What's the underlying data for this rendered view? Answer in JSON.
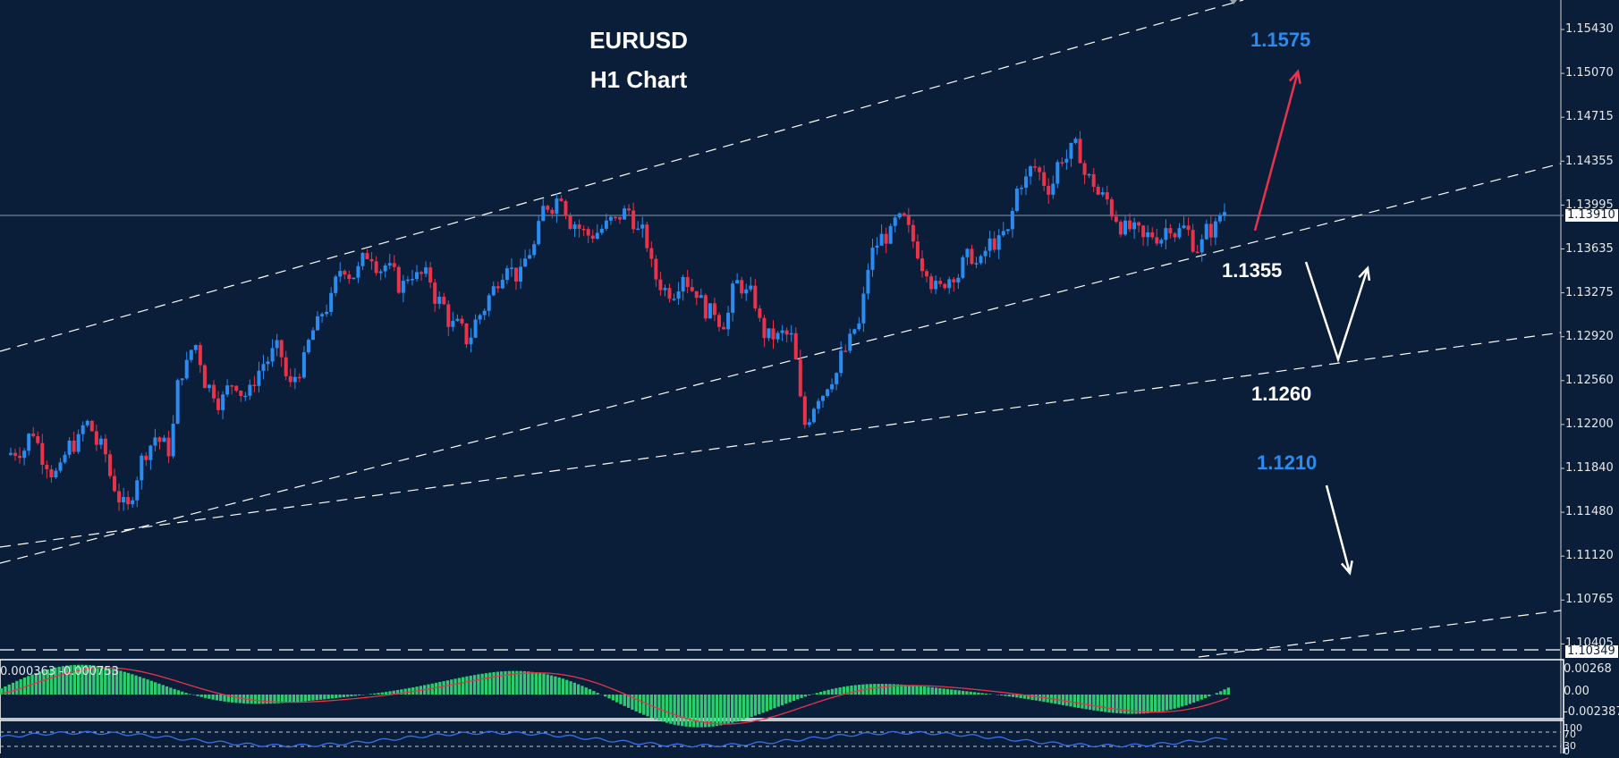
{
  "chart_data": {
    "type": "candlestick",
    "title": "EURUSD",
    "subtitle": "H1 Chart",
    "symbol": "EURUSD",
    "timeframe": "H1",
    "ylim": [
      1.103,
      1.157
    ],
    "y_ticks": [
      "1.15430",
      "1.15070",
      "1.14715",
      "1.14355",
      "1.13995",
      "1.13635",
      "1.13275",
      "1.12920",
      "1.12560",
      "1.12200",
      "1.11840",
      "1.11480",
      "1.11120",
      "1.10765",
      "1.10405"
    ],
    "current_price": "1.13910",
    "bottom_price_tag": "1.10349",
    "grid": false,
    "annotations": [
      {
        "label": "1.1575",
        "color": "#2a8cf0",
        "kind": "target"
      },
      {
        "label": "1.1355",
        "color": "#ffffff",
        "kind": "support"
      },
      {
        "label": "1.1260",
        "color": "#ffffff",
        "kind": "support"
      },
      {
        "label": "1.1210",
        "color": "#2a8cf0",
        "kind": "target"
      }
    ],
    "close_path": [
      1.12,
      1.1215,
      1.119,
      1.118,
      1.1205,
      1.122,
      1.12,
      1.117,
      1.115,
      1.119,
      1.121,
      1.12,
      1.1265,
      1.1285,
      1.125,
      1.124,
      1.1255,
      1.1245,
      1.127,
      1.128,
      1.125,
      1.127,
      1.13,
      1.132,
      1.135,
      1.1345,
      1.136,
      1.135,
      1.1335,
      1.1345,
      1.134,
      1.132,
      1.13,
      1.129,
      1.131,
      1.133,
      1.1355,
      1.134,
      1.1365,
      1.14,
      1.141,
      1.1385,
      1.1375,
      1.138,
      1.1385,
      1.1395,
      1.1375,
      1.134,
      1.133,
      1.1345,
      1.133,
      1.131,
      1.1305,
      1.1335,
      1.1325,
      1.1295,
      1.129,
      1.129,
      1.122,
      1.1245,
      1.126,
      1.128,
      1.13,
      1.136,
      1.1375,
      1.1385,
      1.137,
      1.135,
      1.133,
      1.1345,
      1.1355,
      1.135,
      1.137,
      1.1375,
      1.142,
      1.143,
      1.1415,
      1.144,
      1.1445,
      1.142,
      1.1405,
      1.139,
      1.138,
      1.137,
      1.1375,
      1.1385,
      1.138,
      1.1365,
      1.138,
      1.1395
    ],
    "macd": {
      "readout": "0.000363 -0.000753",
      "ticks": [
        "0.00268",
        "0.00",
        "-0.002387"
      ],
      "histogram_color": "#2ecc71",
      "signal_color": "#e8334a"
    },
    "rsi": {
      "ticks": [
        "100",
        "70",
        "30",
        "0"
      ],
      "levels": [
        70,
        30
      ],
      "line_color": "#3a6fe8"
    },
    "colors": {
      "background": "#0a1e3a",
      "bull": "#2a8cf0",
      "bear": "#e8334a",
      "trendline": "#ffffff",
      "up_arrow": "#e8334a",
      "current_price_line": "#8a9bb0"
    }
  },
  "header": {
    "symbol": "EURUSD",
    "timeframe_label": "H1 Chart"
  },
  "axis": {
    "ticks": [
      "1.15430",
      "1.15070",
      "1.14715",
      "1.14355",
      "1.13995",
      "1.13635",
      "1.13275",
      "1.12920",
      "1.12560",
      "1.12200",
      "1.11840",
      "1.11480",
      "1.11120",
      "1.10765",
      "1.10405"
    ],
    "current_price": "1.13910",
    "bottom_tag": "1.10349"
  },
  "annotations": {
    "target_high": "1.1575",
    "support_1": "1.1355",
    "support_2": "1.1260",
    "target_low": "1.1210"
  },
  "macd": {
    "readout": "0.000363 -0.000753",
    "tick_top": "0.00268",
    "tick_mid": "0.00",
    "tick_bottom": "-0.002387"
  },
  "rsi": {
    "tick_100": "100",
    "tick_70": "70",
    "tick_30": "30",
    "tick_0": "0"
  }
}
